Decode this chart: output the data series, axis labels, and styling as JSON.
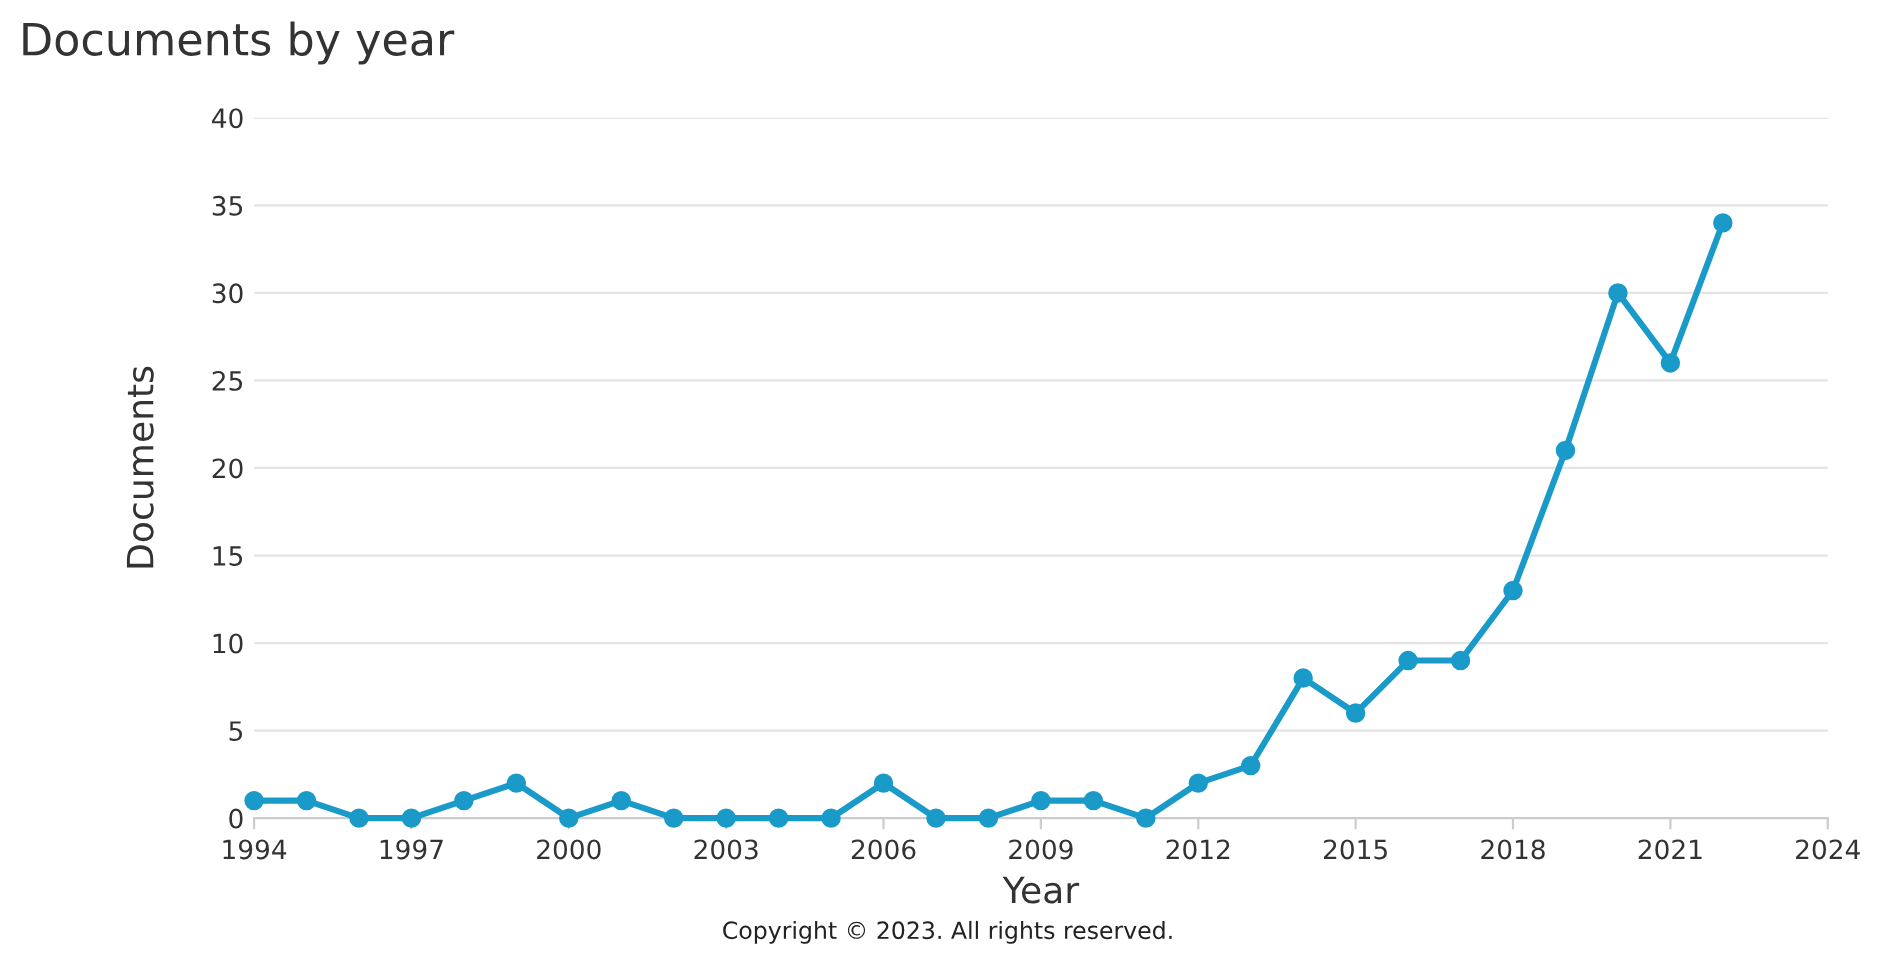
{
  "chart_data": {
    "type": "line",
    "title": "Documents by year",
    "xlabel": "Year",
    "ylabel": "Documents",
    "x": [
      1994,
      1995,
      1996,
      1997,
      1998,
      1999,
      2000,
      2001,
      2002,
      2003,
      2004,
      2005,
      2006,
      2007,
      2008,
      2009,
      2010,
      2011,
      2012,
      2013,
      2014,
      2015,
      2016,
      2017,
      2018,
      2019,
      2020,
      2021,
      2022
    ],
    "series": [
      {
        "color": "#1a9ac9",
        "values": [
          1,
          1,
          0,
          0,
          1,
          2,
          0,
          1,
          0,
          0,
          0,
          0,
          2,
          0,
          0,
          1,
          1,
          0,
          2,
          3,
          8,
          6,
          9,
          9,
          13,
          21,
          30,
          26,
          34
        ]
      }
    ],
    "xlim": [
      1994,
      2024
    ],
    "xticks": [
      1994,
      1997,
      2000,
      2003,
      2006,
      2009,
      2012,
      2015,
      2018,
      2021,
      2024
    ],
    "ylim": [
      0,
      40
    ],
    "yticks": [
      0,
      5,
      10,
      15,
      20,
      25,
      30,
      35,
      40
    ],
    "grid": "y",
    "marker": "circle",
    "line_style": "solid",
    "legend": false,
    "annotations": [
      "Copyright © 2023. All rights reserved."
    ]
  }
}
